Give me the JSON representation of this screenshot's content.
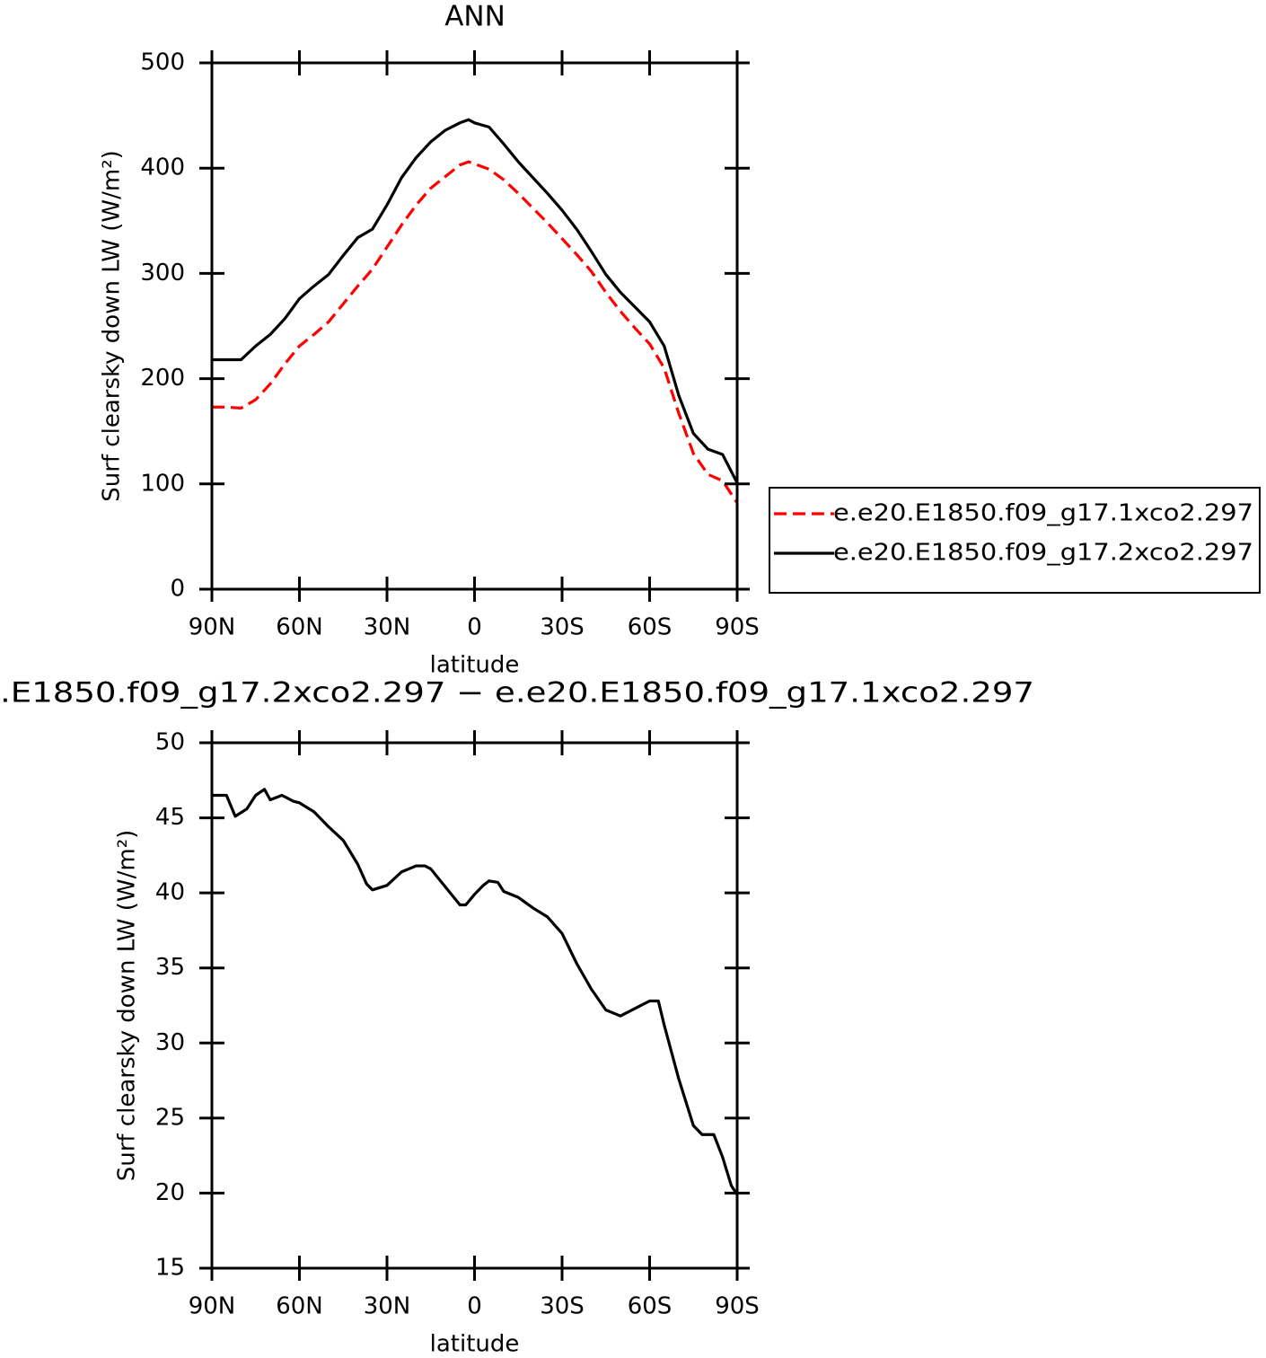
{
  "chart_data": [
    {
      "type": "line",
      "title": "ANN",
      "x_label": "latitude",
      "y_label": "Surf clearsky down LW (W/m²)",
      "x": [
        90,
        85,
        80,
        75,
        70,
        65,
        60,
        55,
        50,
        45,
        40,
        35,
        30,
        25,
        20,
        15,
        10,
        5,
        2,
        0,
        -5,
        -10,
        -15,
        -20,
        -25,
        -30,
        -35,
        -40,
        -45,
        -50,
        -55,
        -60,
        -65,
        -70,
        -75,
        -80,
        -85,
        -90
      ],
      "xlim": [
        90,
        -90
      ],
      "xticks": [
        {
          "value": 90,
          "label": "90N"
        },
        {
          "value": 60,
          "label": "60N"
        },
        {
          "value": 30,
          "label": "30N"
        },
        0,
        {
          "value": -30,
          "label": "30S"
        },
        {
          "value": -60,
          "label": "60S"
        },
        {
          "value": -90,
          "label": "90S"
        }
      ],
      "ylim": [
        0,
        500
      ],
      "yticks": [
        0,
        100,
        200,
        300,
        400,
        500
      ],
      "legend": "outside-right",
      "series": [
        {
          "name": "e.e20.E1850.f09_g17.1xco2.297",
          "color": "#ff0000",
          "dashed": true,
          "values": [
            173,
            173,
            172,
            180,
            195,
            214,
            231,
            242,
            254,
            271,
            288,
            304,
            325,
            346,
            365,
            381,
            392,
            403,
            406,
            404,
            399,
            389,
            376,
            362,
            348,
            333,
            318,
            302,
            282,
            264,
            248,
            233,
            210,
            167,
            129,
            109,
            103,
            82
          ]
        },
        {
          "name": "e.e20.E1850.f09_g17.2xco2.297",
          "color": "#000000",
          "dashed": false,
          "values": [
            218,
            218,
            218,
            231,
            242,
            257,
            276,
            288,
            299,
            317,
            334,
            342,
            365,
            391,
            410,
            425,
            436,
            443,
            446,
            443,
            439,
            423,
            406,
            391,
            376,
            360,
            342,
            321,
            299,
            282,
            268,
            254,
            231,
            184,
            148,
            133,
            128,
            101
          ]
        }
      ]
    },
    {
      "type": "line",
      "title": ".E1850.f09_g17.2xco2.297 − e.e20.E1850.f09_g17.1xco2.297",
      "x_label": "latitude",
      "y_label": "Surf clearsky down LW (W/m²)",
      "x": [
        90,
        85,
        82,
        78,
        75,
        72,
        70,
        66,
        62,
        60,
        55,
        50,
        45,
        40,
        37,
        35,
        30,
        25,
        20,
        17,
        15,
        10,
        5,
        3,
        0,
        -3,
        -5,
        -8,
        -10,
        -15,
        -20,
        -25,
        -30,
        -35,
        -40,
        -45,
        -50,
        -55,
        -60,
        -63,
        -65,
        -70,
        -75,
        -78,
        -82,
        -85,
        -88,
        -90
      ],
      "xlim": [
        90,
        -90
      ],
      "xticks": [
        {
          "value": 90,
          "label": "90N"
        },
        {
          "value": 60,
          "label": "60N"
        },
        {
          "value": 30,
          "label": "30N"
        },
        0,
        {
          "value": -30,
          "label": "30S"
        },
        {
          "value": -60,
          "label": "60S"
        },
        {
          "value": -90,
          "label": "90S"
        }
      ],
      "ylim": [
        15,
        50
      ],
      "yticks": [
        15,
        20,
        25,
        30,
        35,
        40,
        45,
        50
      ],
      "series": [
        {
          "color": "#000000",
          "dashed": false,
          "values": [
            46.5,
            46.5,
            45.1,
            45.6,
            46.5,
            46.9,
            46.2,
            46.5,
            46.1,
            46.0,
            45.4,
            44.4,
            43.5,
            41.9,
            40.6,
            40.2,
            40.5,
            41.4,
            41.8,
            41.8,
            41.6,
            40.4,
            39.2,
            39.2,
            39.9,
            40.5,
            40.8,
            40.7,
            40.1,
            39.7,
            39.0,
            38.4,
            37.3,
            35.3,
            33.6,
            32.2,
            31.8,
            32.3,
            32.8,
            32.8,
            31.2,
            27.6,
            24.5,
            23.9,
            23.9,
            22.4,
            20.5,
            19.9
          ]
        }
      ]
    }
  ]
}
